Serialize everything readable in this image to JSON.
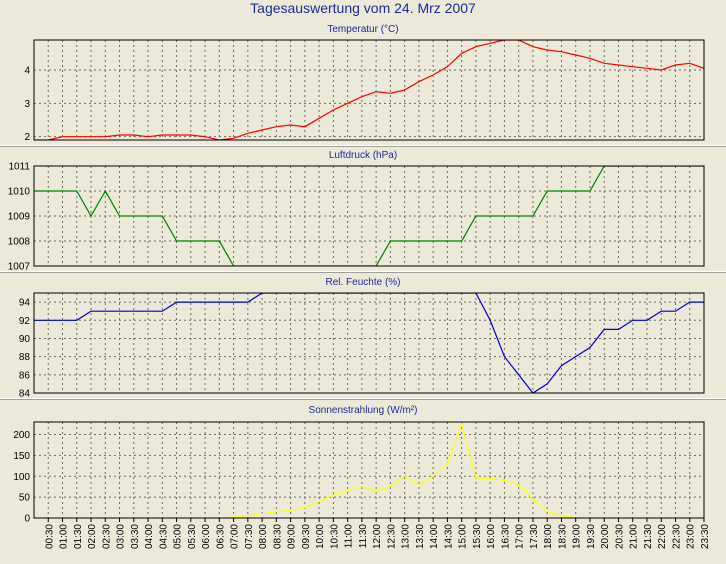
{
  "title": "Tagesauswertung vom 24. Mrz 2007",
  "time_labels": [
    "00:30",
    "01:00",
    "01:30",
    "02:00",
    "02:30",
    "03:00",
    "03:30",
    "04:00",
    "04:30",
    "05:00",
    "05:30",
    "06:00",
    "06:30",
    "07:00",
    "07:30",
    "08:00",
    "08:30",
    "09:00",
    "09:30",
    "10:00",
    "10:30",
    "11:00",
    "11:30",
    "12:00",
    "12:30",
    "13:00",
    "13:30",
    "14:00",
    "14:30",
    "15:00",
    "15:30",
    "16:00",
    "16:30",
    "17:00",
    "17:30",
    "18:00",
    "18:30",
    "19:00",
    "19:30",
    "20:00",
    "20:30",
    "21:00",
    "21:30",
    "22:00",
    "22:30",
    "23:00",
    "23:30"
  ],
  "chart_data": [
    {
      "type": "line",
      "title": "Temperatur (°C)",
      "color": "#ff0000",
      "ylim": [
        1.9,
        4.9
      ],
      "yticks": [
        2,
        3,
        4
      ],
      "x": [
        "00:00",
        "00:30",
        "01:00",
        "01:30",
        "02:00",
        "02:30",
        "03:00",
        "03:30",
        "04:00",
        "04:30",
        "05:00",
        "05:30",
        "06:00",
        "06:30",
        "07:00",
        "07:30",
        "08:00",
        "08:30",
        "09:00",
        "09:30",
        "10:00",
        "10:30",
        "11:00",
        "11:30",
        "12:00",
        "12:30",
        "13:00",
        "13:30",
        "14:00",
        "14:30",
        "15:00",
        "15:30",
        "16:00",
        "16:30",
        "17:00",
        "17:30",
        "18:00",
        "18:30",
        "19:00",
        "19:30",
        "20:00",
        "20:30",
        "21:00",
        "21:30",
        "22:00",
        "22:30",
        "23:00",
        "23:30"
      ],
      "values": [
        1.9,
        1.9,
        2.0,
        2.0,
        2.0,
        2.0,
        2.05,
        2.05,
        2.0,
        2.05,
        2.05,
        2.05,
        2.0,
        1.9,
        1.95,
        2.1,
        2.2,
        2.3,
        2.35,
        2.3,
        2.55,
        2.8,
        3.0,
        3.2,
        3.35,
        3.3,
        3.4,
        3.65,
        3.85,
        4.1,
        4.5,
        4.7,
        4.8,
        4.9,
        4.9,
        4.7,
        4.6,
        4.55,
        4.45,
        4.35,
        4.2,
        4.15,
        4.1,
        4.05,
        4.0,
        4.15,
        4.2,
        4.05
      ]
    },
    {
      "type": "line",
      "title": "Luftdruck (hPa)",
      "color": "#008000",
      "ylim": [
        1007,
        1011
      ],
      "yticks": [
        1007,
        1008,
        1009,
        1010,
        1011
      ],
      "x": [
        "00:00",
        "00:30",
        "01:00",
        "01:30",
        "02:00",
        "02:30",
        "03:00",
        "03:30",
        "04:00",
        "04:30",
        "05:00",
        "05:30",
        "06:00",
        "06:30",
        "07:00",
        "07:30",
        "08:00",
        "08:30",
        "09:00",
        "09:30",
        "10:00",
        "10:30",
        "11:00",
        "11:30",
        "12:00",
        "12:30",
        "13:00",
        "13:30",
        "14:00",
        "14:30",
        "15:00",
        "15:30",
        "16:00",
        "16:30",
        "17:00",
        "17:30",
        "18:00",
        "18:30",
        "19:00",
        "19:30",
        "20:00",
        "20:30",
        "21:00",
        "21:30",
        "22:00",
        "22:30",
        "23:00",
        "23:30"
      ],
      "values": [
        1010,
        1010,
        1010,
        1010,
        1009,
        1010,
        1009,
        1009,
        1009,
        1009,
        1008,
        1008,
        1008,
        1008,
        1007,
        1007,
        1007,
        1007,
        1007,
        1007,
        1007,
        1007,
        1007,
        1007,
        1007,
        1008,
        1008,
        1008,
        1008,
        1008,
        1008,
        1009,
        1009,
        1009,
        1009,
        1009,
        1010,
        1010,
        1010,
        1010,
        1011,
        1011,
        1011,
        1011,
        1011,
        1011,
        1011,
        1011
      ]
    },
    {
      "type": "line",
      "title": "Rel. Feuchte (%)",
      "color": "#0000cc",
      "ylim": [
        84,
        95
      ],
      "yticks": [
        84,
        86,
        88,
        90,
        92,
        94
      ],
      "x": [
        "00:00",
        "00:30",
        "01:00",
        "01:30",
        "02:00",
        "02:30",
        "03:00",
        "03:30",
        "04:00",
        "04:30",
        "05:00",
        "05:30",
        "06:00",
        "06:30",
        "07:00",
        "07:30",
        "08:00",
        "08:30",
        "09:00",
        "09:30",
        "10:00",
        "10:30",
        "11:00",
        "11:30",
        "12:00",
        "12:30",
        "13:00",
        "13:30",
        "14:00",
        "14:30",
        "15:00",
        "15:30",
        "16:00",
        "16:30",
        "17:00",
        "17:30",
        "18:00",
        "18:30",
        "19:00",
        "19:30",
        "20:00",
        "20:30",
        "21:00",
        "21:30",
        "22:00",
        "22:30",
        "23:00",
        "23:30"
      ],
      "values": [
        92,
        92,
        92,
        92,
        93,
        93,
        93,
        93,
        93,
        93,
        94,
        94,
        94,
        94,
        94,
        94,
        95,
        95,
        95,
        95,
        95,
        95,
        95,
        95,
        95,
        95,
        95,
        95,
        95,
        95,
        95,
        95,
        92,
        88,
        86,
        84,
        85,
        87,
        88,
        89,
        91,
        91,
        92,
        92,
        93,
        93,
        94,
        94
      ]
    },
    {
      "type": "line",
      "title": "Sonnenstrahlung (W/m²)",
      "color": "#ffff00",
      "ylim": [
        0,
        230
      ],
      "yticks": [
        0,
        50,
        100,
        150,
        200
      ],
      "x": [
        "00:00",
        "00:30",
        "01:00",
        "01:30",
        "02:00",
        "02:30",
        "03:00",
        "03:30",
        "04:00",
        "04:30",
        "05:00",
        "05:30",
        "06:00",
        "06:30",
        "07:00",
        "07:30",
        "08:00",
        "08:30",
        "09:00",
        "09:30",
        "10:00",
        "10:30",
        "11:00",
        "11:30",
        "12:00",
        "12:30",
        "13:00",
        "13:30",
        "14:00",
        "14:30",
        "15:00",
        "15:30",
        "16:00",
        "16:30",
        "17:00",
        "17:30",
        "18:00",
        "18:30",
        "19:00",
        "19:30",
        "20:00",
        "20:30",
        "21:00",
        "21:30",
        "22:00",
        "22:30",
        "23:00",
        "23:30"
      ],
      "values": [
        0,
        0,
        0,
        0,
        0,
        0,
        0,
        0,
        0,
        0,
        0,
        0,
        0,
        0,
        2,
        5,
        10,
        15,
        18,
        25,
        40,
        55,
        65,
        75,
        65,
        75,
        100,
        80,
        100,
        130,
        225,
        95,
        95,
        90,
        80,
        45,
        15,
        5,
        0,
        0,
        0,
        0,
        0,
        0,
        0,
        0,
        0,
        0
      ]
    }
  ]
}
